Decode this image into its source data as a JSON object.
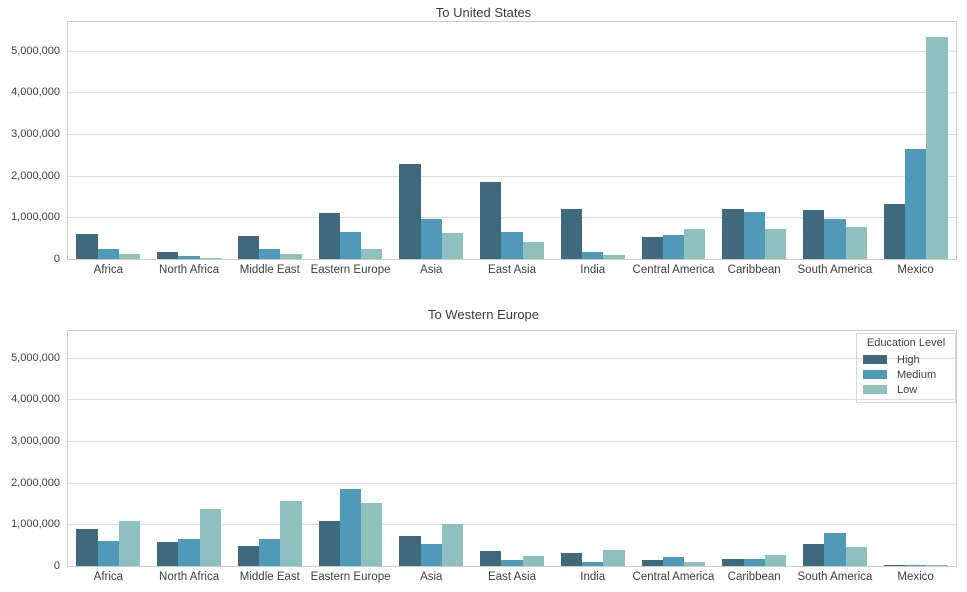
{
  "figure": {
    "background": "#ffffff",
    "series_colors": {
      "High": "#3f6a7d",
      "Medium": "#4f9ab8",
      "Low": "#8ec1bd"
    }
  },
  "legend": {
    "title": "Education Level",
    "entries": [
      {
        "label": "High",
        "color": "#3f6a7d"
      },
      {
        "label": "Medium",
        "color": "#4f9ab8"
      },
      {
        "label": "Low",
        "color": "#8ec1bd"
      }
    ]
  },
  "chart_data": [
    {
      "type": "bar",
      "title": "To United States",
      "categories": [
        "Africa",
        "North Africa",
        "Middle East",
        "Eastern Europe",
        "Asia",
        "East Asia",
        "India",
        "Central America",
        "Caribbean",
        "South America",
        "Mexico"
      ],
      "series": [
        {
          "name": "High",
          "color": "#3f6a7d",
          "values": [
            600000,
            175000,
            550000,
            1100000,
            2280000,
            1860000,
            1210000,
            520000,
            1210000,
            1180000,
            1320000
          ]
        },
        {
          "name": "Medium",
          "color": "#4f9ab8",
          "values": [
            240000,
            75000,
            245000,
            640000,
            960000,
            660000,
            160000,
            570000,
            1140000,
            970000,
            2640000
          ]
        },
        {
          "name": "Low",
          "color": "#8ec1bd",
          "values": [
            110000,
            30000,
            130000,
            235000,
            620000,
            400000,
            105000,
            720000,
            720000,
            760000,
            5330000
          ]
        }
      ],
      "xlabel": "",
      "ylabel": "",
      "ylim": [
        0,
        5690000
      ],
      "yticks": [
        0,
        1000000,
        2000000,
        3000000,
        4000000,
        5000000
      ],
      "ytick_labels": [
        "0",
        "1,000,000",
        "2,000,000",
        "3,000,000",
        "4,000,000",
        "5,000,000"
      ],
      "grid": "horizontal",
      "legend_position": "none"
    },
    {
      "type": "bar",
      "title": "To Western Europe",
      "categories": [
        "Africa",
        "North Africa",
        "Middle East",
        "Eastern Europe",
        "Asia",
        "East Asia",
        "India",
        "Central America",
        "Caribbean",
        "South America",
        "Mexico"
      ],
      "series": [
        {
          "name": "High",
          "color": "#3f6a7d",
          "values": [
            900000,
            570000,
            470000,
            1080000,
            710000,
            355000,
            315000,
            135000,
            180000,
            535000,
            30000
          ]
        },
        {
          "name": "Medium",
          "color": "#4f9ab8",
          "values": [
            590000,
            650000,
            650000,
            1840000,
            540000,
            150000,
            90000,
            215000,
            165000,
            790000,
            20000
          ]
        },
        {
          "name": "Low",
          "color": "#8ec1bd",
          "values": [
            1080000,
            1360000,
            1560000,
            1510000,
            1000000,
            245000,
            380000,
            90000,
            275000,
            460000,
            20000
          ]
        }
      ],
      "xlabel": "",
      "ylabel": "",
      "ylim": [
        0,
        5640000
      ],
      "yticks": [
        0,
        1000000,
        2000000,
        3000000,
        4000000,
        5000000
      ],
      "ytick_labels": [
        "0",
        "1,000,000",
        "2,000,000",
        "3,000,000",
        "4,000,000",
        "5,000,000"
      ],
      "grid": "horizontal",
      "legend_position": "top-right"
    }
  ]
}
